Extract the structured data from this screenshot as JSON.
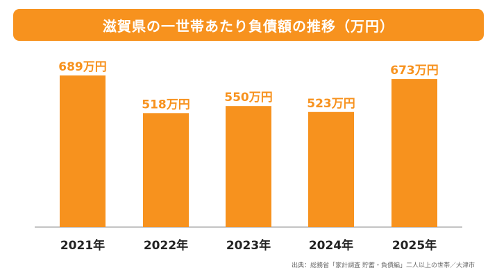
{
  "title": "滋賀県の一世帯あたり負債額の推移（万円）",
  "source": "出典：総務省「家計調査 貯蓄・負債編」二人以上の世帯／大津市",
  "colors": {
    "bar": "#f7921e",
    "banner": "#f7921e",
    "axis": "#888888",
    "tick_text": "#222222"
  },
  "chart_data": {
    "type": "bar",
    "title": "滋賀県の一世帯あたり負債額の推移（万円）",
    "categories": [
      "2021年",
      "2022年",
      "2023年",
      "2024年",
      "2025年"
    ],
    "values": [
      689,
      518,
      550,
      523,
      673
    ],
    "data_labels": [
      "689万円",
      "518万円",
      "550万円",
      "523万円",
      "673万円"
    ],
    "unit": "万円",
    "ylim": [
      0,
      700
    ],
    "grid": false,
    "legend": "none"
  }
}
